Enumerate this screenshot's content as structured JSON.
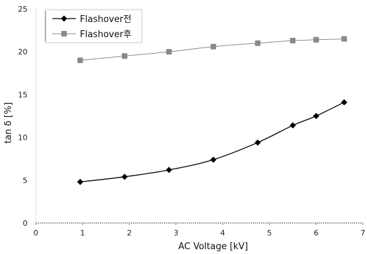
{
  "chart_data": {
    "type": "line",
    "xlabel": "AC Voltage [kV]",
    "ylabel": "tan δ [%]",
    "xlim": [
      0,
      7
    ],
    "ylim": [
      0,
      25
    ],
    "xticks": [
      "0",
      "1",
      "2",
      "3",
      "4",
      "5",
      "6",
      "7"
    ],
    "yticks": [
      "0",
      "5",
      "10",
      "15",
      "20",
      "25"
    ],
    "grid": false,
    "legend_position": "top-left",
    "series": [
      {
        "name": "Flashover전",
        "color": "#000000",
        "marker": "diamond",
        "x": [
          0.95,
          1.9,
          2.85,
          3.8,
          4.75,
          5.5,
          6.0,
          6.6
        ],
        "y": [
          4.8,
          5.4,
          6.2,
          7.4,
          9.4,
          11.4,
          12.5,
          14.1
        ]
      },
      {
        "name": "Flashover후",
        "color": "#8a8a8a",
        "marker": "square",
        "x": [
          0.95,
          1.9,
          2.85,
          3.8,
          4.75,
          5.5,
          6.0,
          6.6
        ],
        "y": [
          19.0,
          19.5,
          20.0,
          20.6,
          21.0,
          21.3,
          21.4,
          21.5
        ]
      }
    ]
  }
}
